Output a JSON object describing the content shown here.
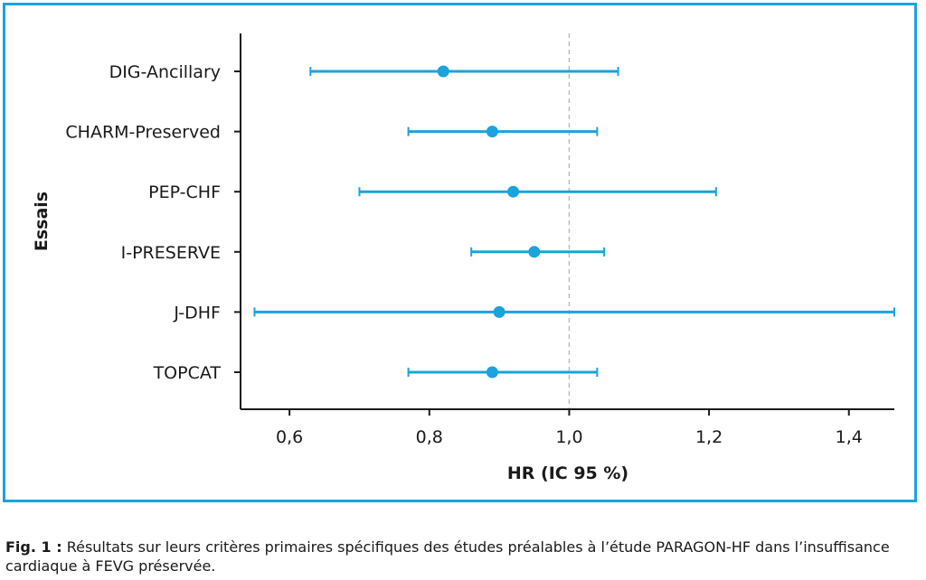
{
  "chart_data": {
    "type": "forest",
    "xlabel": "HR (IC 95 %)",
    "ylabel": "Essais",
    "xlim": [
      0.53,
      1.465
    ],
    "xticks": [
      0.6,
      0.8,
      1.0,
      1.2,
      1.4
    ],
    "xtick_labels": [
      "0,6",
      "0,8",
      "1,0",
      "1,2",
      "1,4"
    ],
    "reference_line": 1.0,
    "color": "#1aa3dc",
    "categories": [
      "DIG-Ancillary",
      "CHARM-Preserved",
      "PEP-CHF",
      "I-PRESERVE",
      "J-DHF",
      "TOPCAT"
    ],
    "points": [
      {
        "label": "DIG-Ancillary",
        "hr": 0.82,
        "low": 0.63,
        "high": 1.07
      },
      {
        "label": "CHARM-Preserved",
        "hr": 0.89,
        "low": 0.77,
        "high": 1.04
      },
      {
        "label": "PEP-CHF",
        "hr": 0.92,
        "low": 0.7,
        "high": 1.21
      },
      {
        "label": "I-PRESERVE",
        "hr": 0.95,
        "low": 0.86,
        "high": 1.05
      },
      {
        "label": "J-DHF",
        "hr": 0.9,
        "low": 0.55,
        "high": 1.465
      },
      {
        "label": "TOPCAT",
        "hr": 0.89,
        "low": 0.77,
        "high": 1.04
      }
    ]
  },
  "caption": {
    "lead": "Fig. 1 :",
    "text": " Résultats sur leurs critères primaires spécifiques des études préalables à l’étude PARAGON-HF dans l’insuffisance cardiaque à FEVG préservée."
  }
}
